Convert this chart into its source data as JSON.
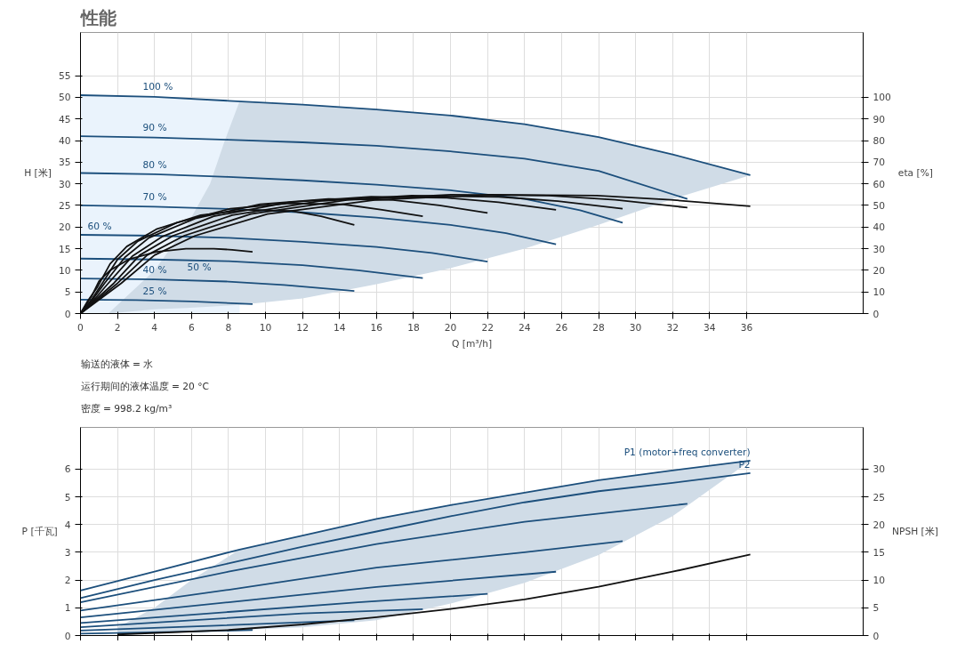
{
  "chart_data": [
    {
      "type": "line",
      "title": "性能",
      "xlabel": "Q [m³/h]",
      "ylabel": "H [米]",
      "y2label": "eta [%]",
      "annotations": [
        "输送的液体 = 水",
        "运行期间的液体温度 = 20 °C",
        "密度 = 998.2 kg/m³"
      ],
      "xlim": [
        0,
        42.3
      ],
      "ylim": [
        0,
        65
      ],
      "y2lim": [
        0,
        130
      ],
      "xticks": [
        0,
        2,
        4,
        6,
        8,
        10,
        12,
        14,
        16,
        18,
        20,
        22,
        24,
        26,
        28,
        30,
        32,
        34,
        36
      ],
      "yticks": [
        0,
        5,
        10,
        15,
        20,
        25,
        30,
        35,
        40,
        45,
        50,
        55
      ],
      "y2ticks": [
        0,
        10,
        20,
        30,
        40,
        50,
        60,
        70,
        80,
        90,
        100
      ],
      "grid": true,
      "series": [
        {
          "type": "area",
          "color": "#eaf3fc",
          "x": [
            0,
            4,
            8.6,
            8.6,
            0
          ],
          "values": [
            50.5,
            50.1,
            49.1,
            0,
            0
          ]
        },
        {
          "type": "area",
          "color": "#d0dce7",
          "x": [
            1.5,
            4,
            5.7,
            7,
            7.8,
            8.6,
            12,
            16,
            20,
            24,
            28,
            32,
            36.2,
            32,
            28,
            24,
            20,
            16,
            12,
            8.6,
            7.8,
            7,
            5.7,
            4,
            1.5
          ],
          "values": [
            0,
            10,
            20,
            30,
            40,
            49.1,
            48.3,
            47.2,
            45.8,
            43.8,
            40.8,
            36.8,
            32,
            26.5,
            20.5,
            15,
            10.5,
            6.8,
            3.5,
            2.0,
            1.8,
            1.6,
            1.3,
            1,
            0
          ]
        },
        {
          "name": "100 %",
          "color": "#1c4f7c",
          "x": [
            0,
            4,
            8,
            12,
            16,
            20,
            24,
            28,
            32,
            36.2
          ],
          "values": [
            50.5,
            50.1,
            49.2,
            48.3,
            47.2,
            45.8,
            43.8,
            40.8,
            36.8,
            32
          ]
        },
        {
          "name": "90 %",
          "color": "#1c4f7c",
          "x": [
            0,
            4,
            8,
            12,
            16,
            20,
            24,
            28,
            32.8
          ],
          "values": [
            41,
            40.7,
            40.2,
            39.6,
            38.8,
            37.5,
            35.8,
            33,
            26.5
          ]
        },
        {
          "name": "80 %",
          "color": "#1c4f7c",
          "x": [
            0,
            4,
            8,
            12,
            16,
            20,
            24,
            27,
            29.3
          ],
          "values": [
            32.5,
            32.2,
            31.6,
            30.8,
            29.8,
            28.5,
            26.5,
            23.9,
            21
          ]
        },
        {
          "name": "70 %",
          "color": "#1c4f7c",
          "x": [
            0,
            4,
            8,
            12,
            16,
            20,
            23,
            25.7
          ],
          "values": [
            25,
            24.7,
            24.2,
            23.4,
            22.2,
            20.5,
            18.6,
            16
          ]
        },
        {
          "name": "60 %",
          "color": "#1c4f7c",
          "x": [
            0,
            4,
            8,
            12,
            16,
            19,
            22
          ],
          "values": [
            18.2,
            18,
            17.5,
            16.6,
            15.4,
            14,
            12
          ]
        },
        {
          "name": "50 %",
          "color": "#1c4f7c",
          "x": [
            0,
            4,
            8,
            12,
            15,
            18.5
          ],
          "values": [
            12.7,
            12.5,
            12.1,
            11.2,
            10,
            8.2
          ]
        },
        {
          "name": "40 %",
          "color": "#1c4f7c",
          "x": [
            0,
            4,
            8,
            11,
            14.8
          ],
          "values": [
            8.1,
            7.9,
            7.4,
            6.6,
            5.2
          ]
        },
        {
          "name": "25 %",
          "color": "#1c4f7c",
          "x": [
            0,
            3,
            6,
            9.3
          ],
          "values": [
            3.2,
            3.1,
            2.8,
            2.2
          ]
        },
        {
          "axis": "y2",
          "color": "#111111",
          "x": [
            0,
            1.1,
            2.2,
            4.0,
            6.2,
            10.1,
            15.9,
            22.1,
            27.9,
            31.9,
            36.2
          ],
          "values": [
            0,
            7,
            14,
            27,
            36,
            46,
            52.5,
            55,
            54.6,
            52.6,
            49.6
          ]
        },
        {
          "axis": "y2",
          "color": "#111111",
          "x": [
            0,
            1.0,
            2.0,
            3.6,
            5.6,
            9.2,
            14.4,
            20.0,
            25.3,
            28.9,
            32.8
          ],
          "values": [
            0,
            7,
            14,
            27,
            36,
            46,
            52.5,
            55,
            54.6,
            52.6,
            49
          ]
        },
        {
          "axis": "y2",
          "color": "#111111",
          "x": [
            0,
            0.9,
            1.8,
            3.2,
            5.0,
            8.2,
            12.9,
            17.9,
            22.6,
            25.8,
            29.3
          ],
          "values": [
            0,
            7,
            14,
            27,
            36,
            45.5,
            52,
            54.5,
            54,
            52,
            48.5
          ]
        },
        {
          "axis": "y2",
          "color": "#111111",
          "x": [
            0,
            0.8,
            1.5,
            2.8,
            4.4,
            7.2,
            11.3,
            15.7,
            19.8,
            22.6,
            25.7
          ],
          "values": [
            0,
            7,
            14,
            26.5,
            35.5,
            45,
            51.5,
            54,
            53.5,
            51.5,
            48
          ]
        },
        {
          "axis": "y2",
          "color": "#111111",
          "x": [
            0,
            0.7,
            1.3,
            2.4,
            3.7,
            6.2,
            9.7,
            13.4,
            16.9,
            19.4,
            22.0
          ],
          "values": [
            0,
            7,
            14,
            26,
            35,
            44,
            50.5,
            53,
            52.5,
            50,
            46.5
          ]
        },
        {
          "axis": "y2",
          "color": "#111111",
          "x": [
            0,
            0.6,
            1.1,
            2.0,
            3.1,
            5.2,
            8.1,
            11.3,
            14.2,
            16.3,
            18.5
          ],
          "values": [
            0,
            6.5,
            13,
            25,
            33.5,
            42,
            48.5,
            51,
            50.5,
            48,
            45
          ]
        },
        {
          "axis": "y2",
          "color": "#111111",
          "x": [
            0,
            0.4,
            0.9,
            1.6,
            2.5,
            4.1,
            6.5,
            9.0,
            11.4,
            13.0,
            14.8
          ],
          "values": [
            0,
            6,
            12,
            23,
            31,
            39,
            45.5,
            48,
            47.5,
            45,
            41
          ]
        },
        {
          "axis": "y2",
          "color": "#111111",
          "x": [
            0,
            0.3,
            0.6,
            1.0,
            1.6,
            2.6,
            4.1,
            5.7,
            7.2,
            8.2,
            9.3
          ],
          "values": [
            0,
            4,
            8,
            15,
            20,
            25,
            28.5,
            30,
            30,
            29.5,
            28.5
          ]
        }
      ]
    },
    {
      "type": "line",
      "ylabel": "P [千瓦]",
      "y2label": "NPSH [米]",
      "xlim": [
        0,
        42.3
      ],
      "ylim": [
        0,
        7.5
      ],
      "y2lim": [
        0,
        37.5
      ],
      "xticks": [
        0,
        2,
        4,
        6,
        8,
        10,
        12,
        14,
        16,
        18,
        20,
        22,
        24,
        26,
        28,
        30,
        32,
        34,
        36
      ],
      "yticks": [
        0,
        1,
        2,
        3,
        4,
        5,
        6
      ],
      "y2ticks": [
        0,
        5,
        10,
        15,
        20,
        25,
        30
      ],
      "tick_labels": "y",
      "grid": true,
      "series": [
        {
          "type": "area",
          "color": "#d0dce7",
          "x": [
            2,
            4,
            6,
            8.6,
            12,
            16,
            20,
            24,
            28,
            32,
            36.2,
            36.2,
            32,
            28,
            24,
            20,
            16,
            12,
            8.6,
            6,
            4,
            2
          ],
          "values": [
            0.3,
            1.0,
            2.0,
            3.1,
            3.6,
            4.2,
            4.7,
            5.15,
            5.6,
            5.95,
            6.3,
            6.3,
            4.3,
            2.9,
            1.9,
            1.15,
            0.55,
            0.3,
            0.2,
            0.15,
            0.1,
            0
          ]
        },
        {
          "name": "P1 (motor+freq converter)",
          "color": "#1c4f7c",
          "x": [
            0,
            4,
            8.6,
            12,
            16,
            20,
            24,
            28,
            32,
            36.2
          ],
          "values": [
            1.62,
            2.3,
            3.1,
            3.6,
            4.2,
            4.7,
            5.15,
            5.6,
            5.95,
            6.3
          ]
        },
        {
          "name": "P2",
          "color": "#1c4f7c",
          "x": [
            0,
            4,
            8,
            12,
            16,
            20,
            24,
            28,
            32,
            36.2
          ],
          "values": [
            1.35,
            2.0,
            2.6,
            3.2,
            3.75,
            4.3,
            4.8,
            5.2,
            5.5,
            5.85
          ]
        },
        {
          "color": "#1c4f7c",
          "x": [
            0,
            8,
            16,
            24,
            32.8
          ],
          "values": [
            1.2,
            2.3,
            3.3,
            4.1,
            4.75
          ]
        },
        {
          "color": "#1c4f7c",
          "x": [
            0,
            8,
            16,
            24,
            29.3
          ],
          "values": [
            0.9,
            1.65,
            2.45,
            3.0,
            3.4
          ]
        },
        {
          "color": "#1c4f7c",
          "x": [
            0,
            8,
            16,
            25.7
          ],
          "values": [
            0.65,
            1.2,
            1.75,
            2.3
          ]
        },
        {
          "color": "#1c4f7c",
          "x": [
            0,
            8,
            15,
            22
          ],
          "values": [
            0.45,
            0.85,
            1.2,
            1.5
          ]
        },
        {
          "color": "#1c4f7c",
          "x": [
            0,
            6,
            12,
            18.5
          ],
          "values": [
            0.3,
            0.55,
            0.8,
            0.95
          ]
        },
        {
          "color": "#1c4f7c",
          "x": [
            0,
            7,
            14.8
          ],
          "values": [
            0.18,
            0.35,
            0.55
          ]
        },
        {
          "color": "#1c4f7c",
          "x": [
            0,
            5,
            9.3
          ],
          "values": [
            0.07,
            0.13,
            0.2
          ]
        },
        {
          "axis": "y2",
          "color": "#111111",
          "x": [
            2,
            8,
            12,
            16,
            20,
            24,
            28,
            32,
            36.2
          ],
          "values": [
            0.2,
            1,
            2,
            3.3,
            4.8,
            6.5,
            8.8,
            11.5,
            14.6
          ]
        }
      ]
    }
  ]
}
